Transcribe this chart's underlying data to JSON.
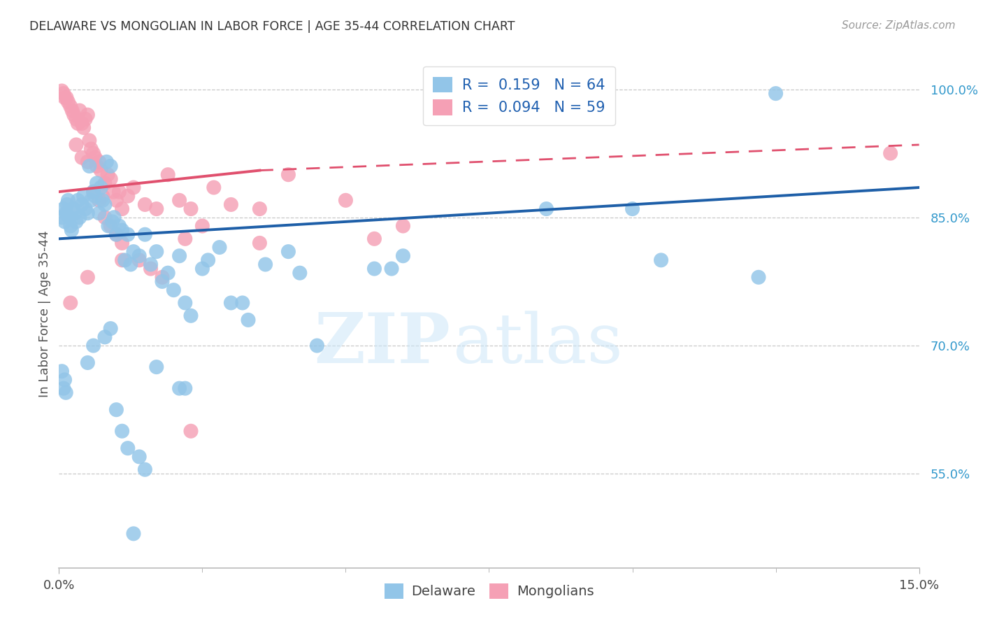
{
  "title": "DELAWARE VS MONGOLIAN IN LABOR FORCE | AGE 35-44 CORRELATION CHART",
  "source": "Source: ZipAtlas.com",
  "ylabel": "In Labor Force | Age 35-44",
  "xlim": [
    0.0,
    15.0
  ],
  "ylim": [
    44.0,
    103.5
  ],
  "yticks": [
    55.0,
    70.0,
    85.0,
    100.0
  ],
  "ytick_labels": [
    "55.0%",
    "70.0%",
    "85.0%",
    "100.0%"
  ],
  "legend_r_delaware": "R =  0.159",
  "legend_n_delaware": "N = 64",
  "legend_r_mongolian": "R =  0.094",
  "legend_n_mongolian": "N = 59",
  "delaware_color": "#92c5e8",
  "mongolian_color": "#f5a0b5",
  "delaware_line_color": "#1e5fa8",
  "mongolian_line_color": "#e0506e",
  "background_color": "#ffffff",
  "grid_color": "#c8c8c8",
  "delaware_x": [
    0.05,
    0.08,
    0.1,
    0.12,
    0.14,
    0.16,
    0.18,
    0.2,
    0.22,
    0.25,
    0.28,
    0.3,
    0.33,
    0.36,
    0.4,
    0.43,
    0.46,
    0.5,
    0.53,
    0.56,
    0.6,
    0.63,
    0.66,
    0.7,
    0.73,
    0.76,
    0.8,
    0.83,
    0.86,
    0.9,
    0.93,
    0.96,
    1.0,
    1.05,
    1.1,
    1.15,
    1.2,
    1.25,
    1.3,
    1.4,
    1.5,
    1.6,
    1.7,
    1.8,
    1.9,
    2.0,
    2.1,
    2.2,
    2.3,
    2.5,
    2.6,
    2.8,
    3.0,
    3.3,
    3.6,
    4.0,
    4.2,
    5.5,
    6.0,
    8.5,
    10.0,
    10.5,
    12.5,
    12.2
  ],
  "delaware_y": [
    85.0,
    86.0,
    84.5,
    85.5,
    86.5,
    87.0,
    85.0,
    84.0,
    83.5,
    86.0,
    85.5,
    84.5,
    87.0,
    85.0,
    86.5,
    87.5,
    86.0,
    85.5,
    91.0,
    87.0,
    88.0,
    87.5,
    89.0,
    85.5,
    88.5,
    87.0,
    86.5,
    91.5,
    84.0,
    91.0,
    84.5,
    85.0,
    83.0,
    84.0,
    83.5,
    80.0,
    83.0,
    79.5,
    81.0,
    80.5,
    83.0,
    79.5,
    81.0,
    77.5,
    78.5,
    76.5,
    80.5,
    75.0,
    73.5,
    79.0,
    80.0,
    81.5,
    75.0,
    73.0,
    79.5,
    81.0,
    78.5,
    79.0,
    80.5,
    86.0,
    86.0,
    80.0,
    99.5,
    78.0
  ],
  "delaware_x_low": [
    0.05,
    0.08,
    0.1,
    0.12,
    0.5,
    0.6,
    0.8,
    0.9,
    1.0,
    1.1,
    1.2,
    1.5,
    1.7,
    2.1,
    2.2,
    3.2,
    4.5,
    5.8,
    1.3,
    1.4
  ],
  "delaware_y_low": [
    67.0,
    65.0,
    66.0,
    64.5,
    68.0,
    70.0,
    71.0,
    72.0,
    62.5,
    60.0,
    58.0,
    55.5,
    67.5,
    65.0,
    65.0,
    75.0,
    70.0,
    79.0,
    48.0,
    57.0
  ],
  "mongolian_x": [
    0.05,
    0.08,
    0.1,
    0.13,
    0.16,
    0.2,
    0.23,
    0.26,
    0.3,
    0.33,
    0.36,
    0.4,
    0.43,
    0.46,
    0.5,
    0.53,
    0.56,
    0.6,
    0.63,
    0.66,
    0.7,
    0.73,
    0.76,
    0.8,
    0.85,
    0.9,
    0.95,
    1.0,
    1.05,
    1.1,
    1.2,
    1.3,
    1.5,
    1.7,
    1.9,
    2.1,
    2.2,
    2.5,
    3.0,
    3.5,
    4.0,
    0.3,
    0.4,
    0.5,
    0.6,
    0.7,
    0.8,
    0.9,
    1.0,
    1.1,
    1.4,
    1.6,
    1.8,
    5.0,
    5.5,
    6.0,
    2.3,
    2.7,
    14.5
  ],
  "mongolian_y": [
    99.8,
    99.5,
    99.0,
    99.0,
    98.5,
    98.0,
    97.5,
    97.0,
    96.5,
    96.0,
    97.5,
    96.0,
    95.5,
    96.5,
    97.0,
    94.0,
    93.0,
    92.5,
    92.0,
    91.0,
    91.5,
    90.5,
    87.5,
    89.0,
    90.0,
    89.5,
    88.0,
    87.0,
    88.0,
    86.0,
    87.5,
    88.5,
    86.5,
    86.0,
    90.0,
    87.0,
    82.5,
    84.0,
    86.5,
    86.0,
    90.0,
    93.5,
    92.0,
    91.5,
    88.0,
    87.0,
    85.0,
    84.0,
    83.0,
    82.0,
    80.0,
    79.0,
    78.0,
    87.0,
    82.5,
    84.0,
    86.0,
    88.5,
    92.5
  ],
  "mongolian_low_x": [
    0.2,
    0.5,
    1.1,
    2.3,
    3.5
  ],
  "mongolian_low_y": [
    75.0,
    78.0,
    80.0,
    60.0,
    82.0
  ]
}
